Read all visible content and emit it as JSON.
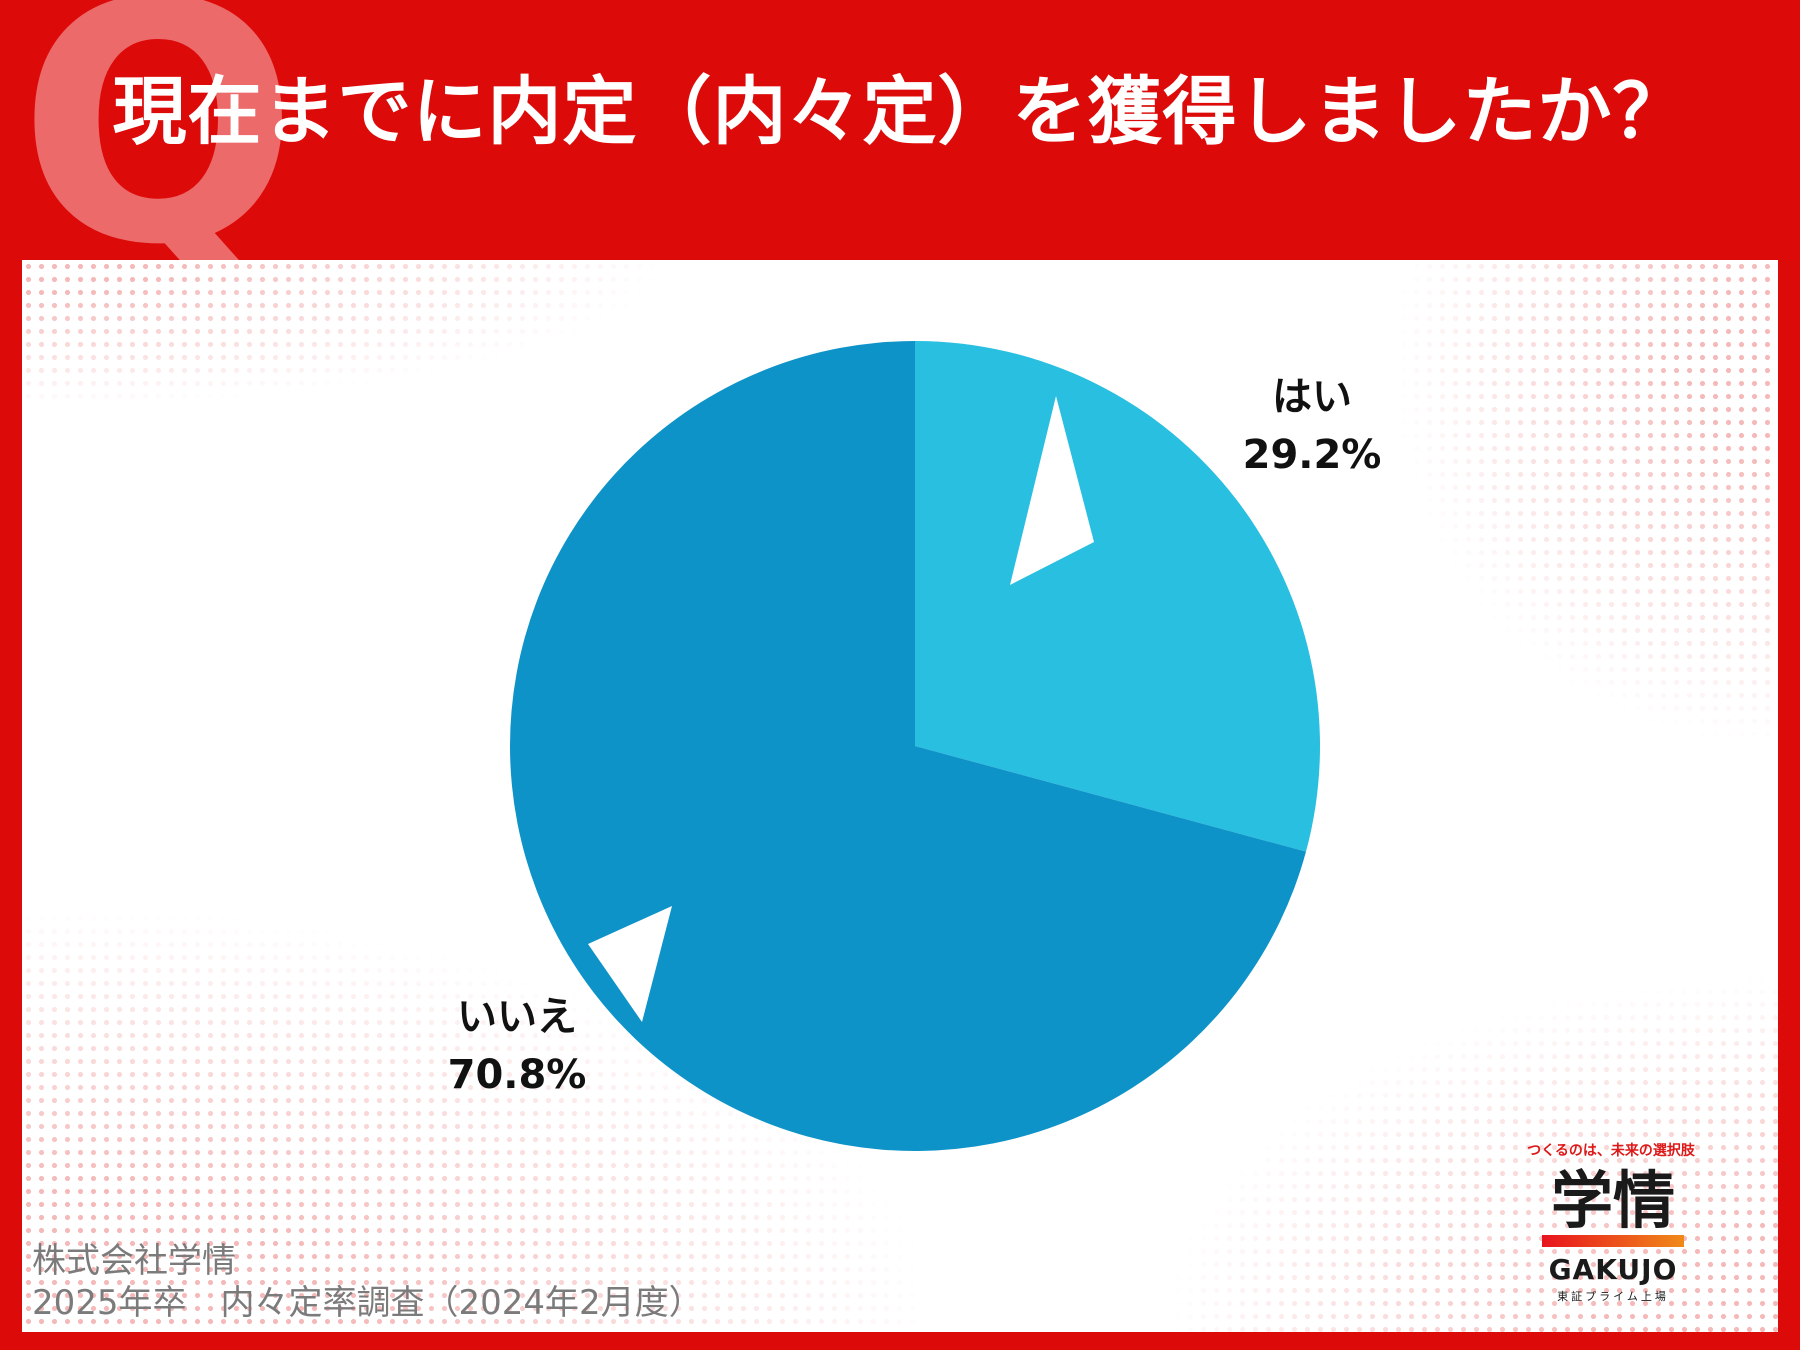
{
  "header": {
    "q_letter": "Q",
    "title": "現在までに内定（内々定）を獲得しましたか？"
  },
  "chart_data": {
    "type": "pie",
    "title": "現在までに内定（内々定）を獲得しましたか？",
    "slices": [
      {
        "label": "はい",
        "value": 29.2,
        "value_label": "29.2%",
        "color": "#29bfe0"
      },
      {
        "label": "いいえ",
        "value": 70.8,
        "value_label": "70.8%",
        "color": "#0e93c8"
      }
    ]
  },
  "source": {
    "line1": "株式会社学情",
    "line2": "2025年卒　内々定率調査（2024年2月度）"
  },
  "logo": {
    "tagline": "つくるのは、未来の選択肢",
    "mark": "学情",
    "name": "GAKUJO",
    "sub": "東証プライム上場"
  },
  "colors": {
    "background": "#dd0a0a",
    "panel": "#ffffff",
    "accent_dots": "#f5b9b9"
  }
}
